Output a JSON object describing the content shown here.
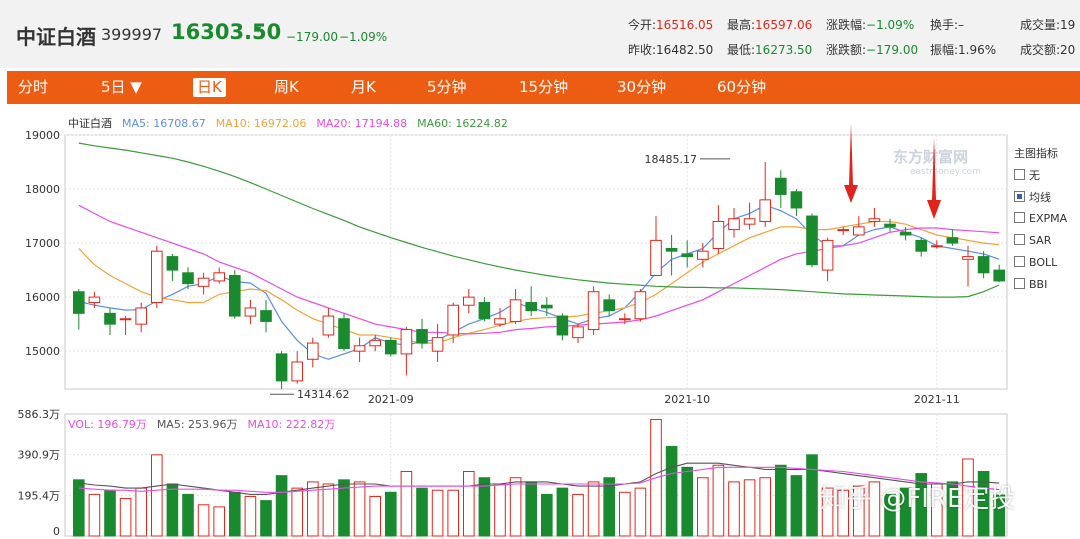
{
  "header": {
    "name": "中证白酒",
    "code": "399997",
    "price": "16303.50",
    "arrow": "▾",
    "change": "−179.00",
    "change_pct": "−1.09%",
    "open_label": "今开:",
    "open_value": "16516.05",
    "high_label": "最高:",
    "high_value": "16597.06",
    "chg_pct_label": "涨跌幅:",
    "chg_pct_value": "−1.09%",
    "turnover_label": "换手:",
    "turnover_value": "–",
    "volume_label": "成交量:",
    "volume_value": "19",
    "prev_label": "昨收:",
    "prev_value": "16482.50",
    "low_label": "最低:",
    "low_value": "16273.50",
    "chg_amt_label": "涨跌额:",
    "chg_amt_value": "−179.00",
    "amp_label": "振幅:",
    "amp_value": "1.96%",
    "amount_label": "成交额:",
    "amount_value": "20"
  },
  "tabs": [
    "分时",
    "5日 ▼",
    "日K",
    "周K",
    "月K",
    "5分钟",
    "15分钟",
    "30分钟",
    "60分钟"
  ],
  "active_tab": 2,
  "indicator_panel": {
    "title": "主图指标",
    "options": [
      "无",
      "均线",
      "EXPMA",
      "SAR",
      "BOLL",
      "BBI"
    ],
    "checked": 1
  },
  "watermark": "知乎 @FIRE定投",
  "logo": {
    "cn": "东方财富网",
    "en": "eastmoney.com"
  },
  "colors": {
    "up": "#e0281e",
    "down": "#1a8a2e",
    "ma5": "#5b8ee6",
    "ma10": "#f0a33a",
    "ma20": "#e64ce6",
    "ma60": "#3c9a3c",
    "accent": "#ec5d13"
  },
  "chart_data": [
    {
      "type": "candlestick",
      "legend": [
        {
          "text": "中证白酒",
          "color": "#333333"
        },
        {
          "text": "MA5: 16708.67",
          "color": "#5b8ee6"
        },
        {
          "text": "MA10: 16972.06",
          "color": "#f0a33a"
        },
        {
          "text": "MA20: 17194.88",
          "color": "#e64ce6"
        },
        {
          "text": "MA60: 16224.82",
          "color": "#3c9a3c"
        }
      ],
      "ylim": [
        14300,
        19000
      ],
      "yticks": [
        15000,
        16000,
        17000,
        18000,
        19000
      ],
      "xticks": [
        {
          "label": "2021-09",
          "index": 20
        },
        {
          "label": "2021-10",
          "index": 39
        },
        {
          "label": "2021-11",
          "index": 55
        }
      ],
      "annotations": [
        {
          "text": "18485.17",
          "index": 42,
          "value": 18485.17
        },
        {
          "text": "14314.62",
          "index": 12,
          "value": 14314.62
        }
      ],
      "candles": [
        [
          16100,
          15700,
          16150,
          15400
        ],
        [
          15900,
          16000,
          16100,
          15800
        ],
        [
          15700,
          15500,
          15800,
          15300
        ],
        [
          15600,
          15600,
          15650,
          15300
        ],
        [
          15500,
          15800,
          15900,
          15350
        ],
        [
          15900,
          16850,
          16950,
          15800
        ],
        [
          16750,
          16500,
          16800,
          16300
        ],
        [
          16450,
          16250,
          16550,
          16150
        ],
        [
          16200,
          16350,
          16450,
          16050
        ],
        [
          16300,
          16450,
          16550,
          16250
        ],
        [
          16400,
          15650,
          16500,
          15600
        ],
        [
          15650,
          15800,
          15950,
          15500
        ],
        [
          15750,
          15550,
          15950,
          15350
        ],
        [
          14950,
          14450,
          15000,
          14300
        ],
        [
          14450,
          14800,
          15000,
          14400
        ],
        [
          14850,
          15150,
          15250,
          14700
        ],
        [
          15300,
          15650,
          15800,
          15250
        ],
        [
          15600,
          15050,
          15700,
          15000
        ],
        [
          15000,
          15100,
          15250,
          14800
        ],
        [
          15100,
          15200,
          15300,
          15000
        ],
        [
          15200,
          14950,
          15250,
          14900
        ],
        [
          14950,
          15400,
          15450,
          14550
        ],
        [
          15400,
          15150,
          15600,
          15050
        ],
        [
          15000,
          15250,
          15500,
          14800
        ],
        [
          15300,
          15850,
          15900,
          15150
        ],
        [
          15850,
          16000,
          16150,
          15700
        ],
        [
          15900,
          15600,
          16000,
          15550
        ],
        [
          15500,
          15600,
          15800,
          15450
        ],
        [
          15550,
          15950,
          16150,
          15500
        ],
        [
          15900,
          15750,
          16200,
          15650
        ],
        [
          15850,
          15800,
          16000,
          15650
        ],
        [
          15650,
          15300,
          15700,
          15200
        ],
        [
          15250,
          15450,
          15500,
          15150
        ],
        [
          15400,
          16100,
          16200,
          15300
        ],
        [
          15950,
          15750,
          16050,
          15650
        ],
        [
          15600,
          15600,
          15700,
          15500
        ],
        [
          15600,
          16100,
          16150,
          15550
        ],
        [
          16400,
          17050,
          17500,
          16450
        ],
        [
          16900,
          16850,
          17150,
          16400
        ],
        [
          16800,
          16750,
          17050,
          16550
        ],
        [
          16700,
          16850,
          17000,
          16550
        ],
        [
          16900,
          17400,
          17700,
          16800
        ],
        [
          17250,
          17450,
          17650,
          17100
        ],
        [
          17350,
          17450,
          17750,
          17250
        ],
        [
          17400,
          17800,
          18500,
          17300
        ],
        [
          18200,
          17900,
          18350,
          17650
        ],
        [
          17950,
          17650,
          18000,
          17500
        ],
        [
          17500,
          16600,
          17550,
          16550
        ],
        [
          16500,
          17050,
          17100,
          16300
        ],
        [
          17250,
          17250,
          17300,
          17150
        ],
        [
          17150,
          17300,
          17500,
          17150
        ],
        [
          17400,
          17450,
          17650,
          17300
        ],
        [
          17350,
          17300,
          17450,
          17200
        ],
        [
          17200,
          17150,
          17300,
          17050
        ],
        [
          17050,
          16850,
          17100,
          16750
        ],
        [
          16950,
          16950,
          17050,
          16900
        ],
        [
          17100,
          17000,
          17250,
          16950
        ],
        [
          16700,
          16750,
          16950,
          16200
        ],
        [
          16750,
          16450,
          16850,
          16350
        ],
        [
          16500,
          16300,
          16600,
          16280
        ]
      ],
      "series": [
        {
          "name": "MA5",
          "values": [
            15920,
            15850,
            15800,
            15760,
            15770,
            15930,
            16050,
            16200,
            16250,
            16390,
            16290,
            16260,
            16070,
            15550,
            15200,
            14950,
            14850,
            14950,
            15050,
            15250,
            15150,
            15110,
            15180,
            15210,
            15350,
            15500,
            15600,
            15720,
            15900,
            15800,
            15720,
            15600,
            15500,
            15600,
            15650,
            15800,
            16100,
            16450,
            16700,
            16800,
            16900,
            17200,
            17450,
            17550,
            17700,
            17600,
            17450,
            17150,
            16950,
            16950,
            17150,
            17250,
            17300,
            17200,
            17100,
            16950,
            16900,
            16850,
            16800,
            16700
          ]
        },
        {
          "name": "MA10",
          "values": [
            16900,
            16600,
            16400,
            16250,
            16100,
            16000,
            15950,
            15900,
            15900,
            16050,
            16100,
            16150,
            16120,
            15950,
            15760,
            15600,
            15500,
            15400,
            15300,
            15300,
            15250,
            15200,
            15150,
            15150,
            15250,
            15330,
            15400,
            15480,
            15550,
            15600,
            15620,
            15630,
            15650,
            15700,
            15750,
            15800,
            15900,
            16050,
            16250,
            16450,
            16650,
            16800,
            16950,
            17100,
            17200,
            17300,
            17300,
            17250,
            17250,
            17300,
            17350,
            17400,
            17400,
            17350,
            17250,
            17150,
            17100,
            17050,
            17000,
            16970
          ]
        },
        {
          "name": "MA20",
          "values": [
            17700,
            17550,
            17400,
            17300,
            17200,
            17100,
            17000,
            16900,
            16800,
            16650,
            16550,
            16450,
            16300,
            16150,
            16000,
            15900,
            15800,
            15700,
            15600,
            15500,
            15450,
            15400,
            15350,
            15350,
            15330,
            15320,
            15330,
            15350,
            15400,
            15420,
            15450,
            15460,
            15480,
            15500,
            15520,
            15540,
            15580,
            15650,
            15750,
            15850,
            15950,
            16100,
            16250,
            16400,
            16550,
            16700,
            16800,
            16850,
            16900,
            16950,
            17000,
            17100,
            17200,
            17250,
            17280,
            17280,
            17250,
            17230,
            17210,
            17190
          ]
        },
        {
          "name": "MA60",
          "values": [
            18850,
            18800,
            18760,
            18720,
            18670,
            18620,
            18570,
            18500,
            18420,
            18330,
            18230,
            18120,
            18000,
            17880,
            17760,
            17640,
            17530,
            17420,
            17300,
            17200,
            17100,
            17010,
            16920,
            16840,
            16760,
            16690,
            16620,
            16560,
            16500,
            16450,
            16400,
            16360,
            16320,
            16290,
            16260,
            16240,
            16220,
            16200,
            16190,
            16180,
            16180,
            16170,
            16170,
            16160,
            16150,
            16140,
            16120,
            16100,
            16080,
            16060,
            16050,
            16040,
            16030,
            16020,
            16010,
            16000,
            16000,
            16010,
            16100,
            16224
          ]
        }
      ]
    },
    {
      "type": "bar",
      "legend": [
        {
          "text": "VOL: 196.79万",
          "color": "#e64ce6"
        },
        {
          "text": "MA5: 253.96万",
          "color": "#555555"
        },
        {
          "text": "MA10: 222.82万",
          "color": "#e64ce6"
        }
      ],
      "ylim": [
        0,
        586.3
      ],
      "yticks": [
        {
          "value": 0,
          "label": "0"
        },
        {
          "value": 195.4,
          "label": "195.4万"
        },
        {
          "value": 390.9,
          "label": "390.9万"
        },
        {
          "value": 586.3,
          "label": "586.3万"
        }
      ],
      "values": [
        270,
        200,
        220,
        180,
        230,
        390,
        250,
        200,
        150,
        140,
        210,
        190,
        170,
        290,
        230,
        260,
        250,
        270,
        260,
        190,
        210,
        310,
        230,
        220,
        220,
        310,
        280,
        250,
        280,
        260,
        200,
        230,
        200,
        260,
        280,
        210,
        230,
        560,
        430,
        330,
        280,
        340,
        260,
        270,
        280,
        340,
        290,
        390,
        230,
        220,
        240,
        260,
        200,
        230,
        300,
        250,
        260,
        370,
        310,
        197
      ],
      "series": [
        {
          "name": "MA5",
          "values": [
            255,
            245,
            240,
            230,
            230,
            240,
            250,
            240,
            230,
            220,
            210,
            200,
            200,
            210,
            220,
            230,
            240,
            250,
            250,
            250,
            240,
            240,
            240,
            240,
            240,
            240,
            250,
            250,
            260,
            260,
            260,
            250,
            240,
            240,
            240,
            250,
            260,
            300,
            330,
            350,
            350,
            350,
            340,
            330,
            320,
            320,
            320,
            320,
            310,
            300,
            290,
            280,
            270,
            260,
            250,
            250,
            250,
            260,
            260,
            254
          ]
        },
        {
          "name": "MA10",
          "values": [
            230,
            225,
            220,
            220,
            215,
            220,
            225,
            225,
            225,
            220,
            220,
            215,
            210,
            210,
            215,
            220,
            225,
            230,
            235,
            240,
            240,
            240,
            240,
            240,
            240,
            240,
            240,
            245,
            250,
            250,
            250,
            250,
            250,
            250,
            250,
            250,
            255,
            280,
            300,
            310,
            320,
            330,
            330,
            330,
            330,
            330,
            325,
            320,
            315,
            310,
            300,
            290,
            280,
            270,
            260,
            255,
            250,
            240,
            230,
            223
          ]
        }
      ]
    }
  ]
}
